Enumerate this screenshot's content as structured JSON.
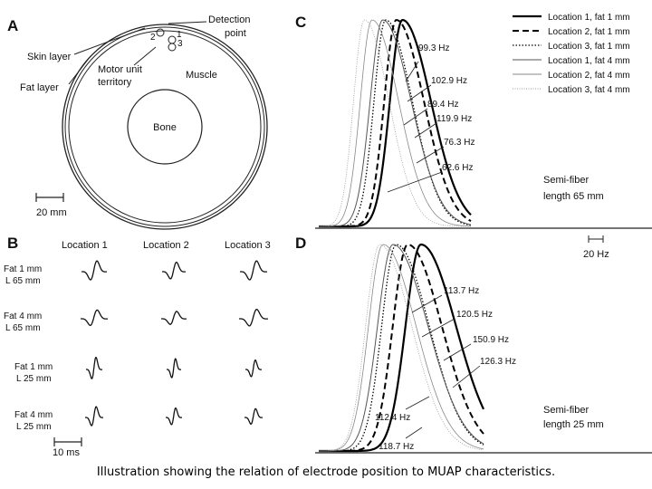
{
  "caption": "Illustration showing the relation of electrode position to MUAP characteristics.",
  "panel_a": {
    "letter": "A",
    "detection_point": [
      "Detection",
      "point"
    ],
    "skin_layer": "Skin layer",
    "fat_layer": "Fat layer",
    "motor_unit_territory": [
      "Motor unit",
      "territory"
    ],
    "muscle": "Muscle",
    "bone": "Bone",
    "location_numbers": [
      "1",
      "2",
      "3"
    ],
    "scale_bar": "20 mm"
  },
  "panel_b": {
    "letter": "B",
    "columns": [
      "Location 1",
      "Location 2",
      "Location 3"
    ],
    "rows": [
      [
        "Fat 1 mm",
        "L 65 mm"
      ],
      [
        "Fat 4 mm",
        "L 65 mm"
      ],
      [
        "Fat 1 mm",
        "L 25 mm"
      ],
      [
        "Fat 4 mm",
        "L 25 mm"
      ]
    ],
    "scale_bar": "10 ms"
  },
  "legend": [
    {
      "name": "Location 1, fat 1 mm",
      "dash": "solid",
      "width": 2.2,
      "color": "#000000"
    },
    {
      "name": "Location 2, fat 1 mm",
      "dash": "7,4",
      "width": 2.0,
      "color": "#000000"
    },
    {
      "name": "Location 3, fat 1 mm",
      "dash": "1.5,2",
      "width": 1.3,
      "color": "#000000"
    },
    {
      "name": "Location 1, fat 4 mm",
      "dash": "solid",
      "width": 1.0,
      "color": "#555555"
    },
    {
      "name": "Location 2, fat 4 mm",
      "dash": "solid",
      "width": 0.8,
      "color": "#888888"
    },
    {
      "name": "Location 3, fat 4 mm",
      "dash": "1,1.5",
      "width": 0.8,
      "color": "#999999"
    }
  ],
  "panel_c": {
    "letter": "C",
    "peaks": [
      0.55,
      0.51,
      0.44,
      0.42,
      0.35,
      0.3
    ],
    "spreads": [
      0.15,
      0.145,
      0.14,
      0.15,
      0.14,
      0.13
    ],
    "freq_labels": [
      "99.3 Hz",
      "102.9 Hz",
      "89.4 Hz",
      "119.9 Hz",
      "76.3 Hz",
      "62.6 Hz"
    ],
    "note": [
      "Semi-fiber",
      "length 65 mm"
    ],
    "scale_bar": "20 Hz"
  },
  "panel_d": {
    "letter": "D",
    "peaks": [
      0.62,
      0.54,
      0.47,
      0.45,
      0.39,
      0.37
    ],
    "spreads": [
      0.17,
      0.165,
      0.16,
      0.17,
      0.16,
      0.155
    ],
    "freq_labels": [
      "113.7 Hz",
      "120.5 Hz",
      "150.9 Hz",
      "126.3 Hz",
      "112.4 Hz",
      "118.7 Hz"
    ],
    "note": [
      "Semi-fiber",
      "length 25 mm"
    ]
  }
}
